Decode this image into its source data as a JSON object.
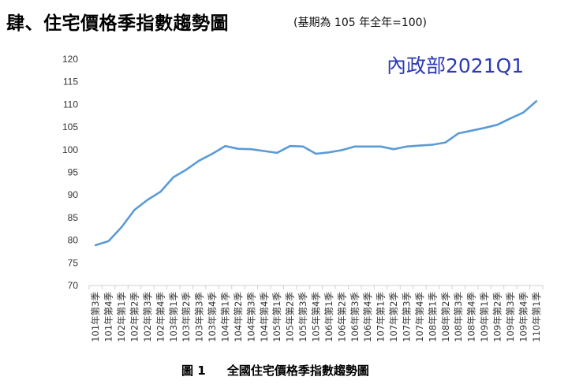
{
  "title": "肆、住宅價格季指數趨勢圖",
  "subtitle": "(基期為 105 年全年=100)",
  "watermark": "內政部2021Q1",
  "caption": {
    "number": "圖 1",
    "text": "全國住宅價格季指數趨勢圖"
  },
  "colors": {
    "line": "#5b9bd5",
    "watermark": "#2d39b6"
  },
  "chart_data": {
    "type": "line",
    "title": "肆、住宅價格季指數趨勢圖",
    "subtitle": "(基期為 105 年全年=100)",
    "ylim": [
      70,
      120
    ],
    "yticks": [
      70,
      75,
      80,
      85,
      90,
      95,
      100,
      105,
      110,
      115,
      120
    ],
    "grid": false,
    "categories": [
      "101年第3季",
      "101年第4季",
      "102年第1季",
      "102年第2季",
      "102年第3季",
      "102年第4季",
      "103年第1季",
      "103年第2季",
      "103年第3季",
      "103年第4季",
      "104年第1季",
      "104年第2季",
      "104年第3季",
      "104年第4季",
      "105年第1季",
      "105年第2季",
      "105年第3季",
      "105年第4季",
      "106年第1季",
      "106年第2季",
      "106年第3季",
      "106年第4季",
      "107年第1季",
      "107年第2季",
      "107年第3季",
      "107年第4季",
      "108年第1季",
      "108年第2季",
      "108年第3季",
      "108年第4季",
      "109年第1季",
      "109年第2季",
      "109年第3季",
      "109年第4季",
      "110年第1季"
    ],
    "values": [
      78.9,
      79.8,
      82.9,
      86.7,
      88.9,
      90.7,
      93.9,
      95.6,
      97.6,
      99.1,
      100.8,
      100.2,
      100.1,
      99.7,
      99.3,
      100.8,
      100.7,
      99.1,
      99.4,
      99.9,
      100.7,
      100.7,
      100.7,
      100.1,
      100.7,
      100.9,
      101.1,
      101.6,
      103.6,
      104.2,
      104.8,
      105.5,
      106.9,
      108.2,
      110.7
    ]
  }
}
